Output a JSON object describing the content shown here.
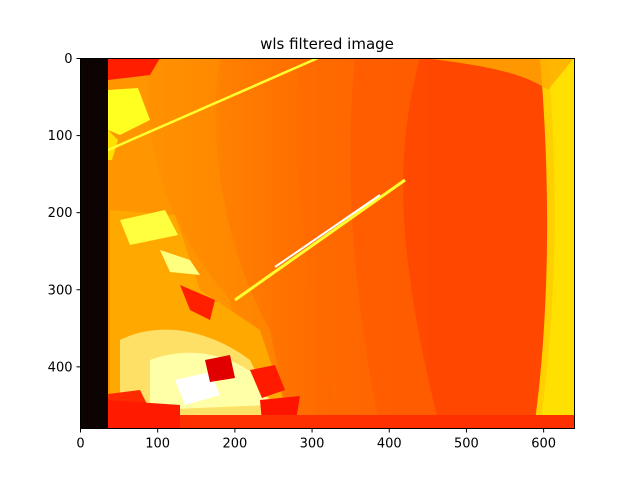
{
  "chart_data": {
    "type": "heatmap",
    "title": "wls filtered image",
    "xlabel": "",
    "ylabel": "",
    "colormap": "hot",
    "image_size": [
      640,
      480
    ],
    "xlim": [
      0,
      640
    ],
    "ylim": [
      480,
      0
    ],
    "x_ticks": [
      0,
      100,
      200,
      300,
      400,
      500,
      600
    ],
    "y_ticks": [
      0,
      100,
      200,
      300,
      400
    ],
    "grid": false,
    "colors": {
      "black_border": "#0d0302",
      "deep_orange": "#ff3a00",
      "orange_red": "#ff4e00",
      "orange": "#ff6a00",
      "light_orange": "#ff8c00",
      "amber": "#ffab00",
      "gold": "#ffd400",
      "yellow": "#ffff1a",
      "pale_yellow": "#ffffa8",
      "white": "#ffffff",
      "red": "#ff1400",
      "dark_red": "#e00000"
    }
  }
}
